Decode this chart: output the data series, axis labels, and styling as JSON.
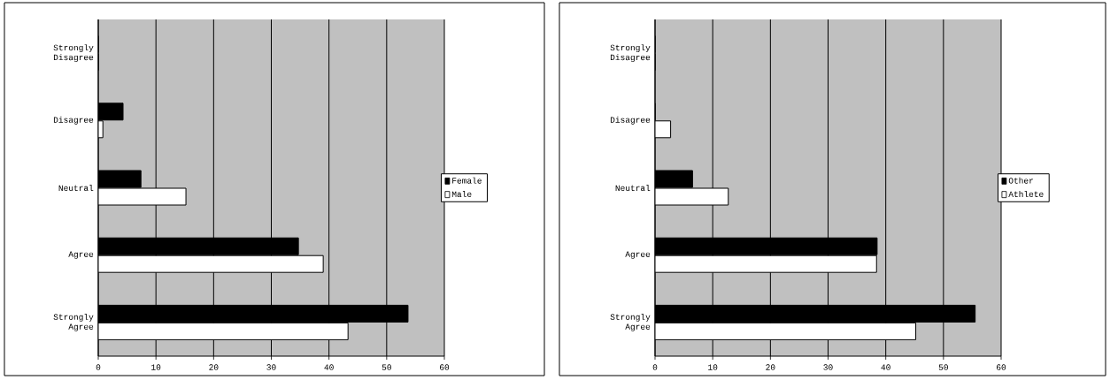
{
  "chart_data": [
    {
      "type": "bar",
      "orientation": "horizontal",
      "categories": [
        "Strongly Disagree",
        "Disagree",
        "Neutral",
        "Agree",
        "Strongly Agree"
      ],
      "series": [
        {
          "name": "Female",
          "color": "#000000",
          "values": [
            0,
            4.3,
            7.4,
            34.7,
            53.7
          ]
        },
        {
          "name": "Male",
          "color": "#ffffff",
          "values": [
            0,
            0.8,
            15.2,
            39.0,
            43.3
          ]
        }
      ],
      "xlim": [
        0,
        60
      ],
      "xticks": [
        0,
        10,
        20,
        30,
        40,
        50,
        60
      ],
      "grid": "x",
      "legend": "right"
    },
    {
      "type": "bar",
      "orientation": "horizontal",
      "categories": [
        "Strongly Disagree",
        "Disagree",
        "Neutral",
        "Agree",
        "Strongly Agree"
      ],
      "series": [
        {
          "name": "Other",
          "color": "#000000",
          "values": [
            0,
            0,
            6.5,
            38.5,
            55.5
          ]
        },
        {
          "name": "Athlete",
          "color": "#ffffff",
          "values": [
            0,
            2.7,
            12.7,
            38.4,
            45.2
          ]
        }
      ],
      "xlim": [
        0,
        60
      ],
      "xticks": [
        0,
        10,
        20,
        30,
        40,
        50,
        60
      ],
      "grid": "x",
      "legend": "right"
    }
  ]
}
